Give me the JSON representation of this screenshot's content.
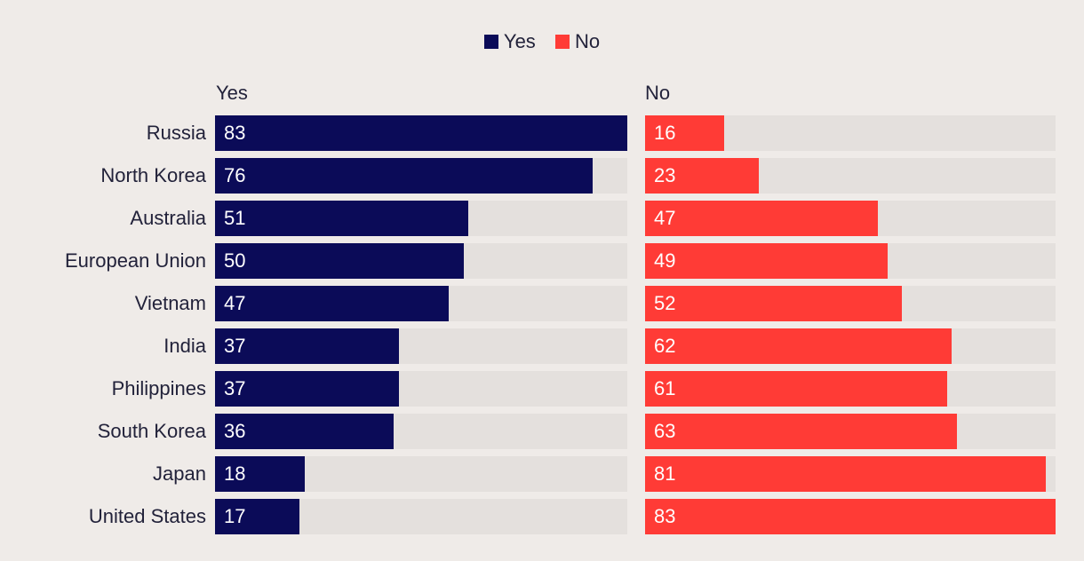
{
  "legend": [
    {
      "label": "Yes",
      "color": "#0B0B58"
    },
    {
      "label": "No",
      "color": "#FF3B36"
    }
  ],
  "chart_data": {
    "type": "bar",
    "orientation": "horizontal",
    "panels": [
      "Yes",
      "No"
    ],
    "categories": [
      "Russia",
      "North Korea",
      "Australia",
      "European Union",
      "Vietnam",
      "India",
      "Philippines",
      "South Korea",
      "Japan",
      "United States"
    ],
    "series": [
      {
        "name": "Yes",
        "color": "#0B0B58",
        "values": [
          83,
          76,
          51,
          50,
          47,
          37,
          37,
          36,
          18,
          17
        ]
      },
      {
        "name": "No",
        "color": "#FF3B36",
        "values": [
          16,
          23,
          47,
          49,
          52,
          62,
          61,
          63,
          81,
          83
        ]
      }
    ],
    "xlim": [
      0,
      83
    ],
    "legend_position": "top-center",
    "grid": false
  }
}
